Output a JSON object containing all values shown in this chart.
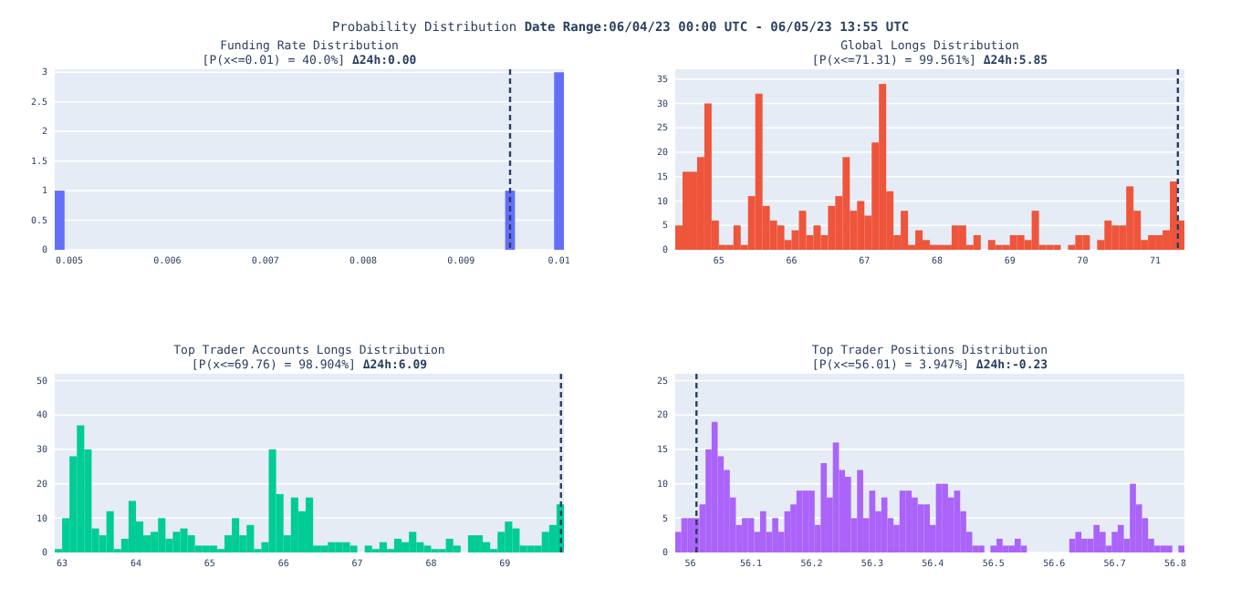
{
  "chart_data": [
    {
      "type": "other",
      "title": "Probability Distribution",
      "annotations": [
        "Date Range:06/04/23 00:00 UTC - 06/05/23 13:55 UTC"
      ]
    },
    {
      "type": "histogram",
      "title": "Funding Rate Distribution",
      "subtitle": "[P(x<=0.01) = 40.0%]",
      "annotations": [
        "Δ24h:0.00"
      ],
      "color": "#636efa",
      "grid": "y",
      "bins": [
        0.00485,
        0.00495,
        0.00505,
        0.00515,
        0.00525,
        0.00535,
        0.00545,
        0.00555,
        0.00565,
        0.00575,
        0.00585,
        0.00595,
        0.00605,
        0.00615,
        0.00625,
        0.00635,
        0.00645,
        0.00655,
        0.00665,
        0.00675,
        0.00685,
        0.00695,
        0.00705,
        0.00715,
        0.00725,
        0.00735,
        0.00745,
        0.00755,
        0.00765,
        0.00775,
        0.00785,
        0.00795,
        0.00805,
        0.00815,
        0.00825,
        0.00835,
        0.00845,
        0.00855,
        0.00865,
        0.00875,
        0.00885,
        0.00895,
        0.00905,
        0.00915,
        0.00925,
        0.00935,
        0.00945,
        0.00955,
        0.00965,
        0.00975,
        0.00985,
        0.00995,
        0.01005
      ],
      "values": [
        1,
        0,
        0,
        0,
        0,
        0,
        0,
        0,
        0,
        0,
        0,
        0,
        0,
        0,
        0,
        0,
        0,
        0,
        0,
        0,
        0,
        0,
        0,
        0,
        0,
        0,
        0,
        0,
        0,
        0,
        0,
        0,
        0,
        0,
        0,
        0,
        0,
        0,
        0,
        0,
        0,
        0,
        0,
        0,
        0,
        0,
        1,
        0,
        0,
        0,
        0,
        3
      ],
      "xlim": [
        0.00485,
        0.01005
      ],
      "xticks": [
        0.005,
        0.006,
        0.007,
        0.008,
        0.009,
        0.01
      ],
      "ylim": [
        0,
        3.05
      ],
      "yticks": [
        0,
        0.5,
        1,
        1.5,
        2,
        2.5,
        3
      ],
      "ref_lines": [
        {
          "axis": "x",
          "value": 0.0095,
          "line_style": "dashed",
          "color": "#2a3f5f"
        }
      ]
    },
    {
      "type": "histogram",
      "title": "Global Longs Distribution",
      "subtitle": "[P(x<=71.31) = 99.561%]",
      "annotations": [
        "Δ24h:5.85"
      ],
      "color": "#ef553b",
      "grid": "y",
      "bins": [
        64.4,
        64.5,
        64.6,
        64.7,
        64.8,
        64.9,
        65.0,
        65.1,
        65.2,
        65.3,
        65.4,
        65.5,
        65.6,
        65.7,
        65.8,
        65.9,
        66.0,
        66.1,
        66.2,
        66.3,
        66.4,
        66.5,
        66.6,
        66.7,
        66.8,
        66.9,
        67.0,
        67.1,
        67.2,
        67.3,
        67.4,
        67.5,
        67.6,
        67.7,
        67.8,
        67.9,
        68.0,
        68.1,
        68.2,
        68.3,
        68.4,
        68.5,
        68.6,
        68.7,
        68.8,
        68.9,
        69.0,
        69.1,
        69.2,
        69.3,
        69.4,
        69.5,
        69.6,
        69.7,
        69.8,
        69.9,
        70.0,
        70.1,
        70.2,
        70.3,
        70.4,
        70.5,
        70.6,
        70.7,
        70.8,
        70.9,
        71.0,
        71.1,
        71.2,
        71.3,
        71.4
      ],
      "values": [
        5,
        16,
        16,
        19,
        30,
        6,
        1,
        1,
        5,
        1,
        11,
        32,
        9,
        6,
        5,
        2,
        4,
        8,
        3,
        5,
        3,
        9,
        11,
        19,
        8,
        10,
        7,
        22,
        34,
        12,
        3,
        8,
        1,
        4,
        2,
        1,
        1,
        1,
        5,
        5,
        1,
        3,
        0,
        2,
        1,
        1,
        3,
        3,
        2,
        8,
        1,
        1,
        1,
        0,
        1,
        3,
        3,
        0,
        2,
        6,
        5,
        5,
        13,
        8,
        2,
        3,
        3,
        4,
        14,
        6
      ],
      "xlim": [
        64.4,
        71.4
      ],
      "xticks": [
        65,
        66,
        67,
        68,
        69,
        70,
        71
      ],
      "ylim": [
        0,
        37
      ],
      "yticks": [
        0,
        5,
        10,
        15,
        20,
        25,
        30,
        35
      ],
      "ref_lines": [
        {
          "axis": "x",
          "value": 71.31,
          "line_style": "dashed",
          "color": "#2a3f5f"
        }
      ]
    },
    {
      "type": "histogram",
      "title": "Top Trader Accounts Longs Distribution",
      "subtitle": "[P(x<=69.76) = 98.904%]",
      "annotations": [
        "Δ24h:6.09"
      ],
      "color": "#00cc96",
      "grid": "y",
      "bins": [
        62.9,
        63.0,
        63.1,
        63.2,
        63.3,
        63.4,
        63.5,
        63.6,
        63.7,
        63.8,
        63.9,
        64.0,
        64.1,
        64.2,
        64.3,
        64.4,
        64.5,
        64.6,
        64.7,
        64.8,
        64.9,
        65.0,
        65.1,
        65.2,
        65.3,
        65.4,
        65.5,
        65.6,
        65.7,
        65.8,
        65.9,
        66.0,
        66.1,
        66.2,
        66.3,
        66.4,
        66.5,
        66.6,
        66.7,
        66.8,
        66.9,
        67.0,
        67.1,
        67.2,
        67.3,
        67.4,
        67.5,
        67.6,
        67.7,
        67.8,
        67.9,
        68.0,
        68.1,
        68.2,
        68.3,
        68.4,
        68.5,
        68.6,
        68.7,
        68.8,
        68.9,
        69.0,
        69.1,
        69.2,
        69.3,
        69.4,
        69.5,
        69.6,
        69.7,
        69.8
      ],
      "values": [
        1,
        10,
        28,
        37,
        30,
        7,
        5,
        12,
        1,
        4,
        15,
        9,
        5,
        6,
        10,
        4,
        6,
        7,
        5,
        2,
        2,
        2,
        1,
        5,
        10,
        5,
        8,
        1,
        3,
        30,
        17,
        5,
        16,
        12,
        16,
        2,
        2,
        3,
        3,
        3,
        2,
        0,
        2,
        1,
        3,
        1,
        4,
        3,
        6,
        3,
        2,
        1,
        1,
        4,
        2,
        0,
        5,
        5,
        3,
        1,
        6,
        9,
        7,
        2,
        2,
        2,
        6,
        8,
        14
      ],
      "xlim": [
        62.9,
        69.8
      ],
      "xticks": [
        63,
        64,
        65,
        66,
        67,
        68,
        69
      ],
      "ylim": [
        0,
        52
      ],
      "yticks": [
        0,
        10,
        20,
        30,
        40,
        50
      ],
      "ref_lines": [
        {
          "axis": "x",
          "value": 69.76,
          "line_style": "dashed",
          "color": "#2a3f5f"
        }
      ]
    },
    {
      "type": "histogram",
      "title": "Top Trader Positions Distribution",
      "subtitle": "[P(x<=56.01) = 3.947%]",
      "annotations": [
        "Δ24h:-0.23"
      ],
      "color": "#ab63fa",
      "grid": "y",
      "bins": [
        55.975,
        55.985,
        55.995,
        56.005,
        56.015,
        56.025,
        56.035,
        56.045,
        56.055,
        56.065,
        56.075,
        56.085,
        56.095,
        56.105,
        56.115,
        56.125,
        56.135,
        56.145,
        56.155,
        56.165,
        56.175,
        56.185,
        56.195,
        56.205,
        56.215,
        56.225,
        56.235,
        56.245,
        56.255,
        56.265,
        56.275,
        56.285,
        56.295,
        56.305,
        56.315,
        56.325,
        56.335,
        56.345,
        56.355,
        56.365,
        56.375,
        56.385,
        56.395,
        56.405,
        56.415,
        56.425,
        56.435,
        56.445,
        56.455,
        56.465,
        56.475,
        56.485,
        56.495,
        56.505,
        56.515,
        56.525,
        56.535,
        56.545,
        56.555,
        56.565,
        56.575,
        56.585,
        56.595,
        56.605,
        56.615,
        56.625,
        56.635,
        56.645,
        56.655,
        56.665,
        56.675,
        56.685,
        56.695,
        56.705,
        56.715,
        56.725,
        56.735,
        56.745,
        56.755,
        56.765,
        56.775,
        56.785,
        56.795,
        56.805,
        56.815
      ],
      "values": [
        3,
        5,
        5,
        5,
        7,
        15,
        19,
        14,
        12,
        8,
        4,
        5,
        5,
        3,
        6,
        3,
        5,
        3,
        6,
        7,
        9,
        9,
        9,
        4,
        13,
        8,
        16,
        12,
        11,
        5,
        12,
        5,
        9,
        6,
        8,
        5,
        4,
        9,
        9,
        8,
        7,
        7,
        4,
        10,
        10,
        8,
        9,
        6,
        3,
        1,
        1,
        0,
        1,
        2,
        1,
        1,
        2,
        1,
        0,
        0,
        0,
        0,
        0,
        0,
        0,
        2,
        3,
        2,
        2,
        4,
        3,
        1,
        3,
        4,
        2,
        10,
        7,
        5,
        2,
        1,
        1,
        1,
        0,
        1
      ],
      "xlim": [
        55.975,
        56.815
      ],
      "xticks": [
        56,
        56.1,
        56.2,
        56.3,
        56.4,
        56.5,
        56.6,
        56.7,
        56.8
      ],
      "ylim": [
        0,
        26
      ],
      "yticks": [
        0,
        5,
        10,
        15,
        20,
        25
      ],
      "ref_lines": [
        {
          "axis": "x",
          "value": 56.01,
          "line_style": "dashed",
          "color": "#2a3f5f"
        }
      ]
    }
  ]
}
